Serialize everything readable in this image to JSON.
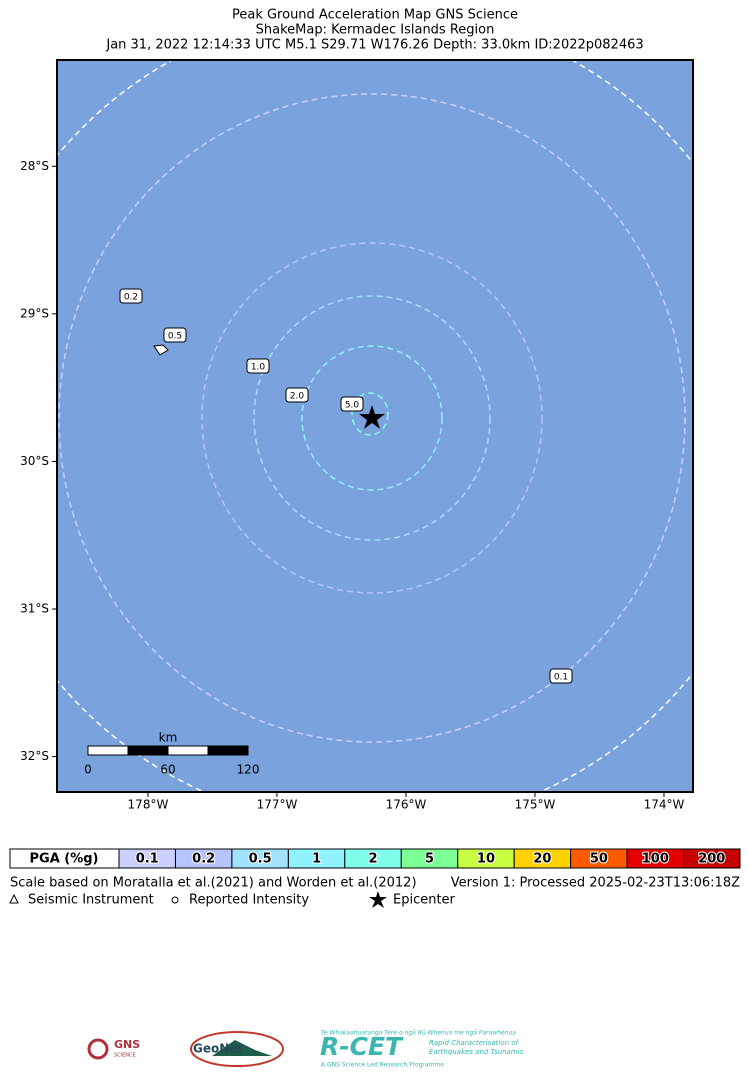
{
  "header": {
    "title_lines": [
      "Peak Ground Acceleration Map GNS Science",
      "ShakeMap: Kermadec Islands Region",
      "Jan 31, 2022 12:14:33 UTC M5.1 S29.71 W176.26 Depth: 33.0km ID:2022p082463"
    ]
  },
  "map": {
    "xlim": [
      -178.705,
      -173.775
    ],
    "ylim": [
      -32.24,
      -27.28
    ],
    "xticks": [
      {
        "value": -178,
        "label": "178°W"
      },
      {
        "value": -177,
        "label": "177°W"
      },
      {
        "value": -176,
        "label": "176°W"
      },
      {
        "value": -175,
        "label": "175°W"
      },
      {
        "value": -174,
        "label": "174°W"
      }
    ],
    "yticks": [
      {
        "value": -28,
        "label": "28°S"
      },
      {
        "value": -29,
        "label": "29°S"
      },
      {
        "value": -30,
        "label": "30°S"
      },
      {
        "value": -31,
        "label": "31°S"
      },
      {
        "value": -32,
        "label": "32°S"
      }
    ],
    "contour_labels": [
      "0.2",
      "0.5",
      "1.0",
      "2.0",
      "5.0",
      "0.1"
    ],
    "scale_bar": {
      "unit": "km",
      "labels": [
        "0",
        "60",
        "120"
      ]
    }
  },
  "legend": {
    "title": "PGA (%g)",
    "items": [
      {
        "label": "0.1",
        "color": "#ccd0ff"
      },
      {
        "label": "0.2",
        "color": "#b8c4ff"
      },
      {
        "label": "0.5",
        "color": "#a0e2ff"
      },
      {
        "label": "1",
        "color": "#90f2ff"
      },
      {
        "label": "2",
        "color": "#80ffe8"
      },
      {
        "label": "5",
        "color": "#7cff94"
      },
      {
        "label": "10",
        "color": "#c8ff40"
      },
      {
        "label": "20",
        "color": "#ffd200"
      },
      {
        "label": "50",
        "color": "#ff5a00"
      },
      {
        "label": "100",
        "color": "#e40000"
      },
      {
        "label": "200",
        "color": "#c40000"
      }
    ]
  },
  "footer": {
    "scale_note": "Scale based on Moratalla et al.(2021) and Worden et al.(2012)",
    "version": "Version 1: Processed 2025-02-23T13:06:18Z",
    "symbols": [
      "Seismic Instrument",
      "Reported Intensity",
      "Epicenter"
    ]
  },
  "logos": {
    "gns": "GNS",
    "gns_sub": "SCIENCE",
    "geonet": "GeoNet",
    "rcet_top": "Te Whakaahuatanga Tere o ngā Rū Whenua me ngā Parawhenua",
    "rcet": "R-CET",
    "rcet_sub1": "Rapid Characterisation of",
    "rcet_sub2": "Earthquakes and Tsunamis",
    "rcet_bottom": "A GNS Science Led Research Programme"
  }
}
